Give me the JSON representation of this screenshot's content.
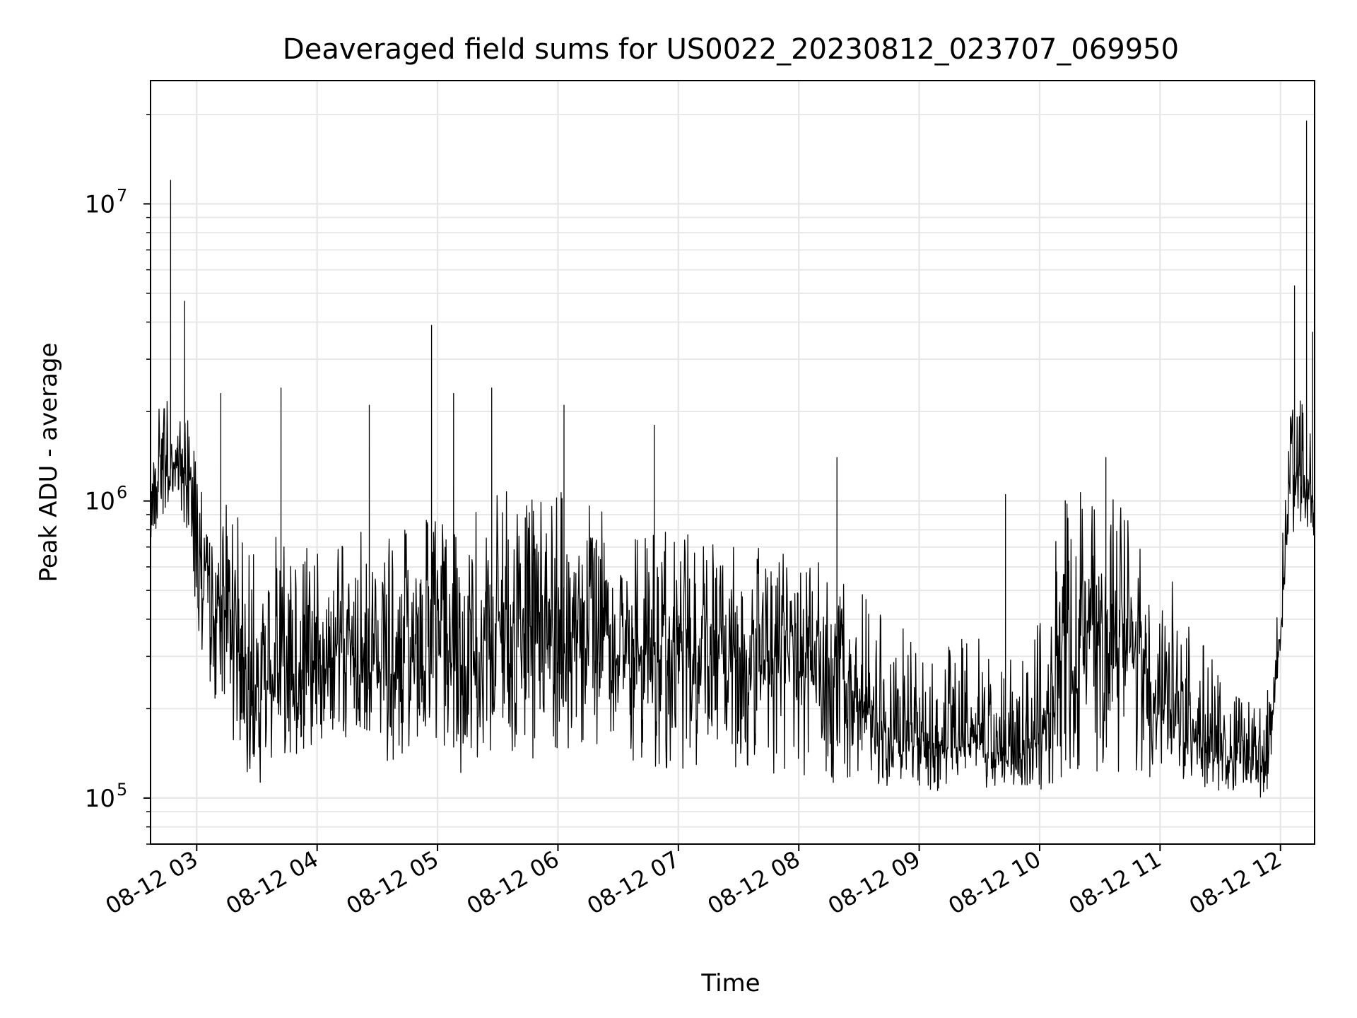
{
  "chart_data": {
    "type": "line",
    "title": "Deaveraged field sums for US0022_20230812_023707_069950",
    "xlabel": "Time",
    "ylabel": "Peak ADU - average",
    "x_scale": "time",
    "y_scale": "log",
    "xlim": [
      "2023-08-12 02:37",
      "2023-08-12 12:17"
    ],
    "ylim": [
      70000,
      26000000
    ],
    "grid": true,
    "line_color": "#000000",
    "x_ticks": [
      "2023-08-12 03:00",
      "2023-08-12 04:00",
      "2023-08-12 05:00",
      "2023-08-12 06:00",
      "2023-08-12 07:00",
      "2023-08-12 08:00",
      "2023-08-12 09:00",
      "2023-08-12 10:00",
      "2023-08-12 11:00",
      "2023-08-12 12:00"
    ],
    "x_tick_labels": [
      "08-12 03",
      "08-12 04",
      "08-12 05",
      "08-12 06",
      "08-12 07",
      "08-12 08",
      "08-12 09",
      "08-12 10",
      "08-12 11",
      "08-12 12"
    ],
    "y_ticks": [
      100000,
      1000000,
      10000000
    ],
    "y_tick_labels": [
      {
        "base": "10",
        "exp": "5"
      },
      {
        "base": "10",
        "exp": "6"
      },
      {
        "base": "10",
        "exp": "7"
      }
    ],
    "series": [
      {
        "x": [
          "2023-08-12 02:37",
          "2023-08-12 02:45",
          "2023-08-12 02:50",
          "2023-08-12 02:55",
          "2023-08-12 03:00",
          "2023-08-12 03:05",
          "2023-08-12 03:10",
          "2023-08-12 03:15",
          "2023-08-12 03:20",
          "2023-08-12 03:25",
          "2023-08-12 03:30",
          "2023-08-12 03:35",
          "2023-08-12 03:40",
          "2023-08-12 03:45",
          "2023-08-12 03:50",
          "2023-08-12 04:00",
          "2023-08-12 04:10",
          "2023-08-12 04:20",
          "2023-08-12 04:30",
          "2023-08-12 04:40",
          "2023-08-12 04:50",
          "2023-08-12 05:00",
          "2023-08-12 05:10",
          "2023-08-12 05:20",
          "2023-08-12 05:30",
          "2023-08-12 05:40",
          "2023-08-12 05:50",
          "2023-08-12 06:00",
          "2023-08-12 06:10",
          "2023-08-12 06:20",
          "2023-08-12 06:30",
          "2023-08-12 06:40",
          "2023-08-12 06:50",
          "2023-08-12 07:00",
          "2023-08-12 07:10",
          "2023-08-12 07:20",
          "2023-08-12 07:30",
          "2023-08-12 07:40",
          "2023-08-12 07:50",
          "2023-08-12 08:00",
          "2023-08-12 08:10",
          "2023-08-12 08:20",
          "2023-08-12 08:30",
          "2023-08-12 08:40",
          "2023-08-12 08:50",
          "2023-08-12 09:00",
          "2023-08-12 09:10",
          "2023-08-12 09:20",
          "2023-08-12 09:30",
          "2023-08-12 09:40",
          "2023-08-12 09:50",
          "2023-08-12 10:00",
          "2023-08-12 10:10",
          "2023-08-12 10:20",
          "2023-08-12 10:30",
          "2023-08-12 10:40",
          "2023-08-12 10:50",
          "2023-08-12 11:00",
          "2023-08-12 11:10",
          "2023-08-12 11:20",
          "2023-08-12 11:30",
          "2023-08-12 11:40",
          "2023-08-12 11:50",
          "2023-08-12 11:55",
          "2023-08-12 12:00",
          "2023-08-12 12:05",
          "2023-08-12 12:10",
          "2023-08-12 12:17"
        ],
        "y_center": [
          1100000,
          1300000,
          1400000,
          1200000,
          700000,
          500000,
          450000,
          400000,
          350000,
          250000,
          200000,
          220000,
          260000,
          300000,
          250000,
          280000,
          330000,
          300000,
          260000,
          240000,
          330000,
          320000,
          270000,
          300000,
          400000,
          380000,
          350000,
          360000,
          340000,
          360000,
          330000,
          320000,
          300000,
          330000,
          320000,
          300000,
          290000,
          300000,
          300000,
          280000,
          280000,
          260000,
          220000,
          170000,
          160000,
          150000,
          150000,
          150000,
          150000,
          140000,
          140000,
          160000,
          250000,
          300000,
          400000,
          350000,
          300000,
          200000,
          170000,
          150000,
          140000,
          135000,
          140000,
          150000,
          400000,
          1100000,
          1200000,
          1000000
        ],
        "y_high": [
          1700000,
          2600000,
          2400000,
          2100000,
          1300000,
          1000000,
          950000,
          1000000,
          900000,
          800000,
          750000,
          750000,
          850000,
          800000,
          750000,
          800000,
          900000,
          800000,
          750000,
          750000,
          1000000,
          1000000,
          950000,
          1000000,
          1100000,
          1100000,
          1050000,
          1100000,
          1000000,
          1000000,
          950000,
          850000,
          800000,
          800000,
          780000,
          750000,
          700000,
          700000,
          680000,
          680000,
          650000,
          600000,
          500000,
          450000,
          400000,
          300000,
          300000,
          350000,
          350000,
          280000,
          320000,
          450000,
          1000000,
          1100000,
          1100000,
          1000000,
          850000,
          600000,
          500000,
          350000,
          280000,
          250000,
          240000,
          250000,
          600000,
          2000000,
          2500000,
          1400000
        ],
        "y_low": [
          750000,
          900000,
          1000000,
          800000,
          400000,
          250000,
          200000,
          170000,
          150000,
          115000,
          105000,
          110000,
          130000,
          140000,
          130000,
          150000,
          160000,
          150000,
          135000,
          130000,
          150000,
          140000,
          120000,
          130000,
          140000,
          140000,
          130000,
          140000,
          130000,
          140000,
          125000,
          125000,
          120000,
          125000,
          125000,
          120000,
          120000,
          125000,
          120000,
          115000,
          115000,
          110000,
          110000,
          105000,
          110000,
          105000,
          105000,
          108000,
          108000,
          108000,
          108000,
          105000,
          110000,
          115000,
          120000,
          120000,
          115000,
          110000,
          115000,
          110000,
          105000,
          100000,
          100000,
          110000,
          300000,
          700000,
          750000,
          700000
        ],
        "spikes": [
          {
            "x": "2023-08-12 02:47",
            "y": 12000000
          },
          {
            "x": "2023-08-12 02:54",
            "y": 4700000
          },
          {
            "x": "2023-08-12 03:12",
            "y": 2300000
          },
          {
            "x": "2023-08-12 03:42",
            "y": 2400000
          },
          {
            "x": "2023-08-12 04:26",
            "y": 2100000
          },
          {
            "x": "2023-08-12 04:57",
            "y": 3900000
          },
          {
            "x": "2023-08-12 05:08",
            "y": 2300000
          },
          {
            "x": "2023-08-12 05:27",
            "y": 2400000
          },
          {
            "x": "2023-08-12 06:03",
            "y": 2100000
          },
          {
            "x": "2023-08-12 06:48",
            "y": 1800000
          },
          {
            "x": "2023-08-12 08:19",
            "y": 1400000
          },
          {
            "x": "2023-08-12 09:43",
            "y": 1050000
          },
          {
            "x": "2023-08-12 10:33",
            "y": 1400000
          },
          {
            "x": "2023-08-12 12:07",
            "y": 5300000
          },
          {
            "x": "2023-08-12 12:13",
            "y": 19000000
          },
          {
            "x": "2023-08-12 12:16",
            "y": 3700000
          }
        ]
      }
    ]
  }
}
